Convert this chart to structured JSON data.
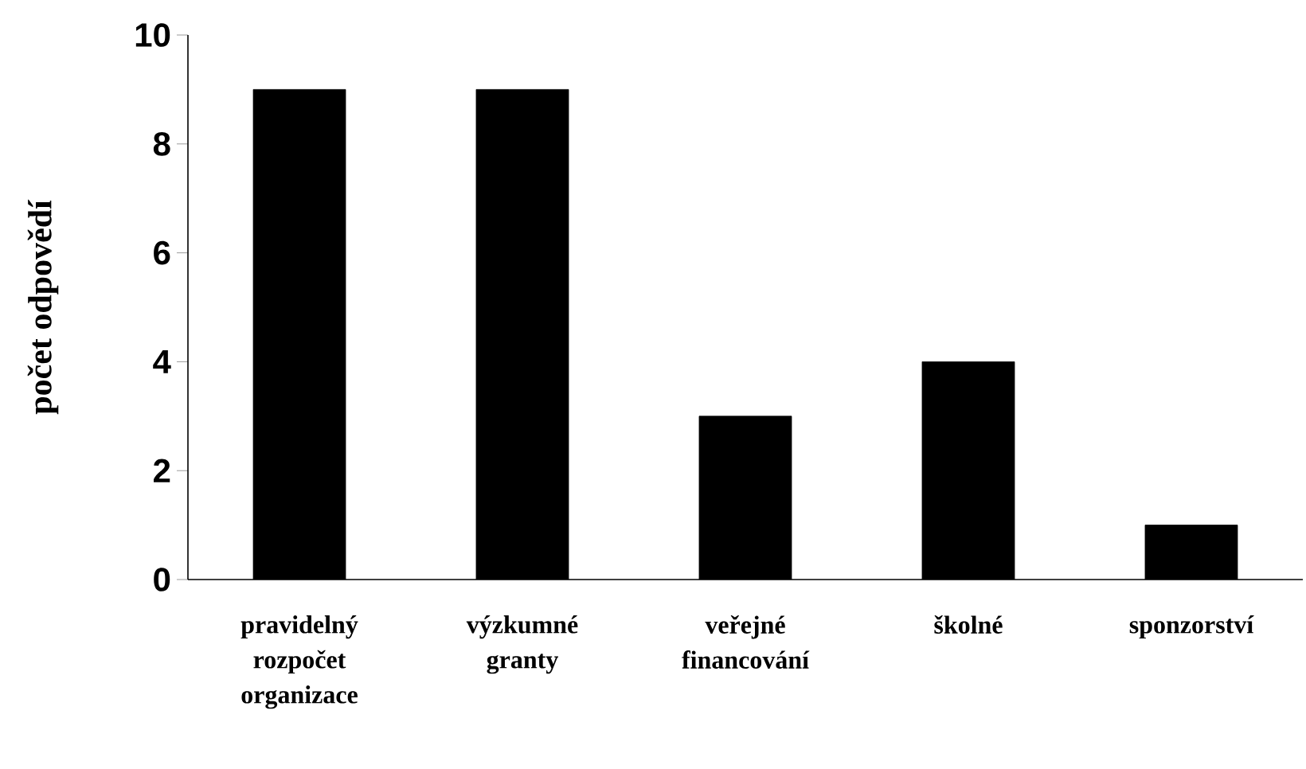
{
  "chart_data": {
    "type": "bar",
    "ylabel": "počet odpovědí",
    "categories": [
      "pravidelný rozpočet organizace",
      "výzkumné granty",
      "veřejné financování",
      "školné",
      "sponzorství"
    ],
    "values": [
      9,
      9,
      3,
      4,
      1
    ],
    "color": "#000000",
    "ylim": [
      0,
      10
    ],
    "yticks": [
      0,
      2,
      4,
      6,
      8,
      10
    ],
    "grid": false
  }
}
